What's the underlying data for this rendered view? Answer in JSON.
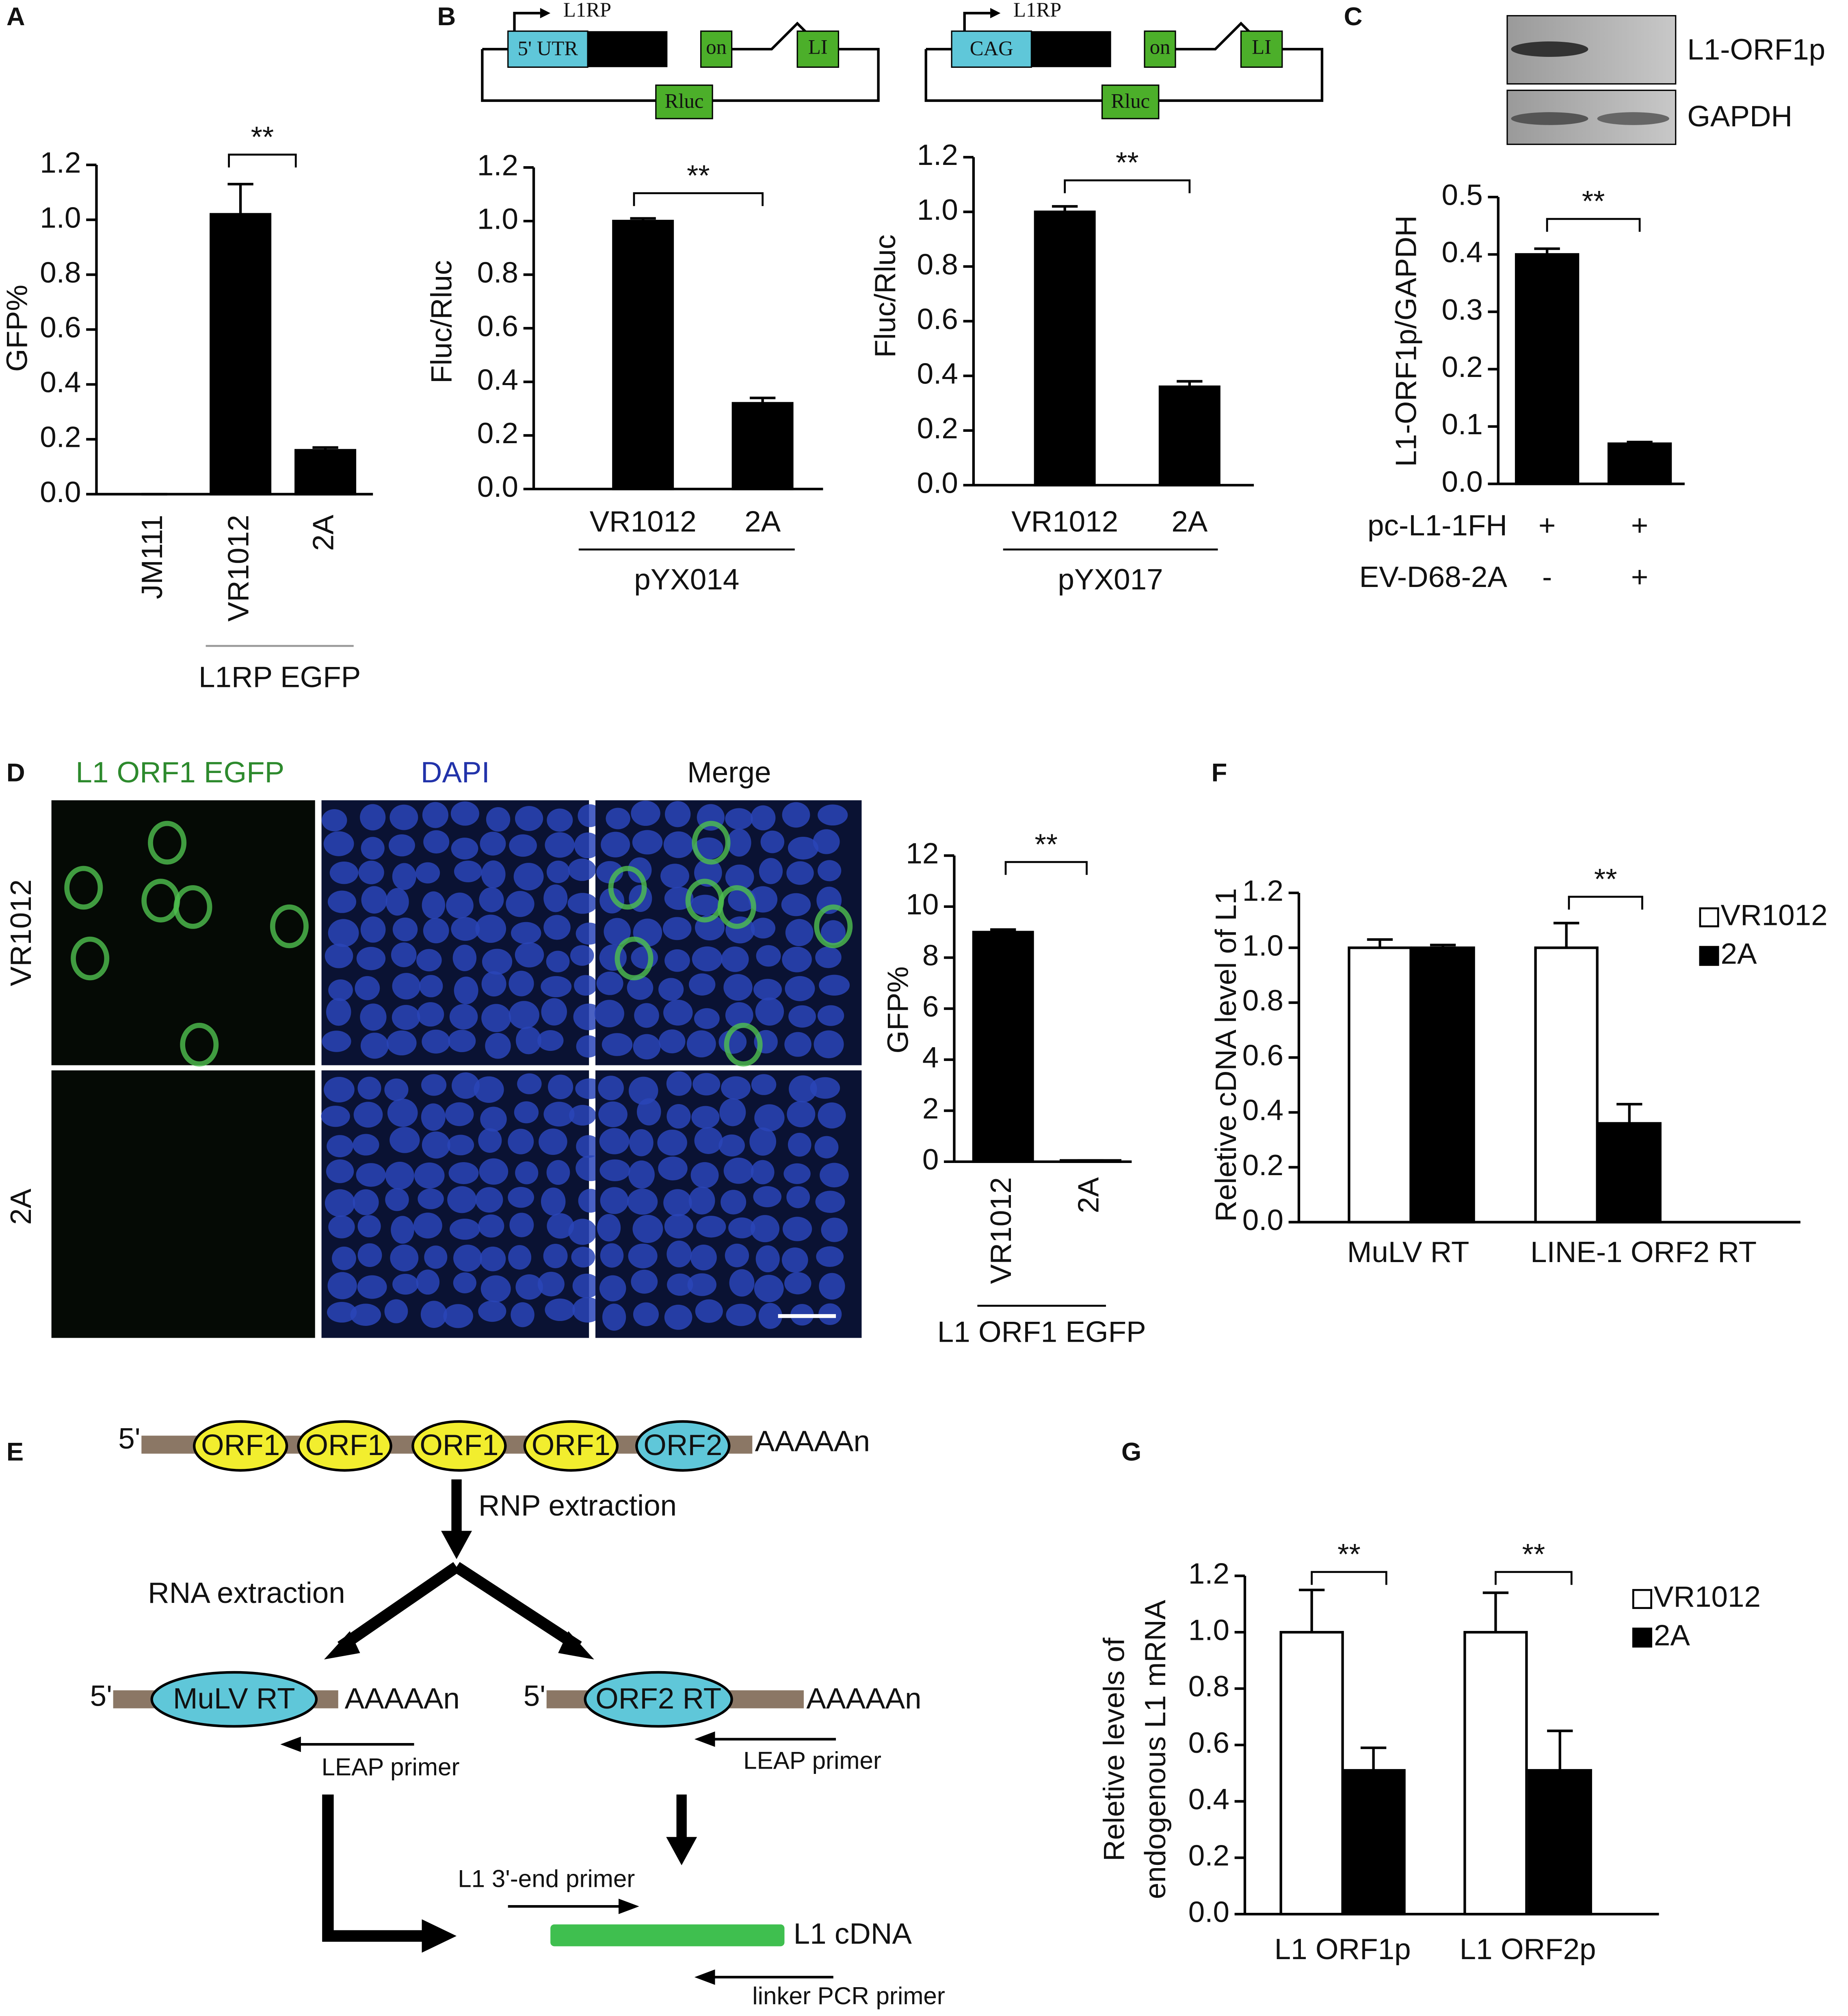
{
  "chart_data": [
    {
      "type": "bar",
      "ylabel": "GFP%",
      "categories": [
        "JM111",
        "VR1012",
        "2A"
      ],
      "values": [
        0,
        1.02,
        0.16
      ],
      "errors": [
        0,
        0.11,
        0.01
      ],
      "color": "#000000",
      "ylim": [
        0,
        1.2
      ],
      "yticks": [
        {
          "value": 0,
          "label": "0.0"
        },
        0.2,
        0.4,
        0.6,
        0.8,
        {
          "value": 1,
          "label": "1.0"
        },
        1.2
      ],
      "group_label": "L1RP EGFP",
      "significance": [
        "**"
      ]
    },
    {
      "type": "bar",
      "ylabel": "Fluc/Rluc",
      "categories": [
        "VR1012",
        "2A"
      ],
      "values": [
        1.0,
        0.32
      ],
      "errors": [
        0.01,
        0.02
      ],
      "color": "#000000",
      "ylim": [
        0,
        1.2
      ],
      "yticks": [
        {
          "value": 0,
          "label": "0.0"
        },
        0.2,
        0.4,
        0.6,
        0.8,
        {
          "value": 1,
          "label": "1.0"
        },
        1.2
      ],
      "group_label": "pYX014",
      "significance": [
        "**"
      ]
    },
    {
      "type": "bar",
      "ylabel": "Fluc/Rluc",
      "categories": [
        "VR1012",
        "2A"
      ],
      "values": [
        1.0,
        0.36
      ],
      "errors": [
        0.02,
        0.02
      ],
      "color": "#000000",
      "ylim": [
        0,
        1.2
      ],
      "yticks": [
        {
          "value": 0,
          "label": "0.0"
        },
        0.2,
        0.4,
        0.6,
        0.8,
        {
          "value": 1,
          "label": "1.0"
        },
        1.2
      ],
      "group_label": "pYX017",
      "significance": [
        "**"
      ]
    },
    {
      "type": "bar",
      "ylabel": "L1-ORF1p/GAPDH",
      "values": [
        0.4,
        0.07
      ],
      "errors": [
        0.01,
        0.003
      ],
      "color": "#000000",
      "ylim": [
        0,
        0.5
      ],
      "yticks": [
        {
          "value": 0,
          "label": "0.0"
        },
        0.1,
        0.2,
        0.3,
        0.4,
        0.5
      ],
      "significance": [
        "**"
      ],
      "conditions": [
        {
          "label": "pc-L1-1FH",
          "values": [
            "+",
            "+"
          ]
        },
        {
          "label": "EV-D68-2A",
          "values": [
            "-",
            "+"
          ]
        }
      ]
    },
    {
      "type": "bar",
      "ylabel": "GFP%",
      "categories": [
        "VR1012",
        "2A"
      ],
      "values": [
        9.0,
        0.05
      ],
      "errors": [
        0.1,
        0
      ],
      "color": "#000000",
      "ylim": [
        0,
        12
      ],
      "yticks": [
        0,
        2,
        4,
        6,
        8,
        10,
        12
      ],
      "group_label": "L1 ORF1 EGFP",
      "significance": [
        "**"
      ]
    },
    {
      "type": "bar",
      "ylabel": "Reletive cDNA level of L1",
      "categories": [
        "MuLV RT",
        "LINE-1 ORF2 RT"
      ],
      "series": [
        {
          "name": "VR1012",
          "color": "#ffffff",
          "values": [
            1.0,
            1.0
          ],
          "errors": [
            0.03,
            0.09
          ]
        },
        {
          "name": "2A",
          "color": "#000000",
          "values": [
            1.0,
            0.36
          ],
          "errors": [
            0.01,
            0.07
          ]
        }
      ],
      "ylim": [
        0,
        1.2
      ],
      "yticks": [
        {
          "value": 0,
          "label": "0.0"
        },
        0.2,
        0.4,
        0.6,
        0.8,
        {
          "value": 1,
          "label": "1.0"
        },
        1.2
      ],
      "significance": [
        "**"
      ]
    },
    {
      "type": "bar",
      "ylabel": [
        "Reletive levels of",
        "endogenous  L1 mRNA"
      ],
      "categories": [
        "L1 ORF1p",
        "L1 ORF2p"
      ],
      "series": [
        {
          "name": "VR1012",
          "color": "#ffffff",
          "values": [
            1.0,
            1.0
          ],
          "errors": [
            0.15,
            0.14
          ]
        },
        {
          "name": "2A",
          "color": "#000000",
          "values": [
            0.51,
            0.51
          ],
          "errors": [
            0.08,
            0.14
          ]
        }
      ],
      "ylim": [
        0,
        1.2
      ],
      "yticks": [
        {
          "value": 0,
          "label": "0.0"
        },
        0.2,
        0.4,
        0.6,
        0.8,
        {
          "value": 1,
          "label": "1.0"
        },
        1.2
      ],
      "significance": [
        "**",
        "**"
      ]
    }
  ],
  "figure": {
    "panel_labels": [
      "A",
      "B",
      "C",
      "D",
      "E",
      "F",
      "G"
    ],
    "constructs": [
      {
        "promoter_label": "L1RP",
        "promoter": "5' UTR",
        "orf1": "on",
        "orf2": "LI",
        "reporter": "Rluc"
      },
      {
        "promoter_label": "L1RP",
        "promoter": "CAG",
        "orf1": "on",
        "orf2": "LI",
        "reporter": "Rluc"
      }
    ],
    "blot": [
      "L1-ORF1p",
      "GAPDH"
    ],
    "microscopy": {
      "columns": [
        "L1 ORF1 EGFP",
        "DAPI",
        "Merge"
      ],
      "rows": [
        "VR1012",
        "2A"
      ]
    },
    "diagram": {
      "top": {
        "five_prime": "5'",
        "domains": [
          "ORF1",
          "ORF1",
          "ORF1",
          "ORF1",
          "ORF2"
        ],
        "tail": "AAAAAn"
      },
      "step1": "RNP extraction",
      "step2": "RNA extraction",
      "left": {
        "five_prime": "5'",
        "enzyme": "MuLV RT",
        "tail": "AAAAAn",
        "primer": "LEAP primer"
      },
      "right": {
        "five_prime": "5'",
        "enzyme": "ORF2 RT",
        "tail": "AAAAAn",
        "primer": "LEAP primer"
      },
      "forward_primer": "L1 3'-end primer",
      "product": "L1 cDNA",
      "reverse_primer": "linker PCR primer"
    }
  }
}
